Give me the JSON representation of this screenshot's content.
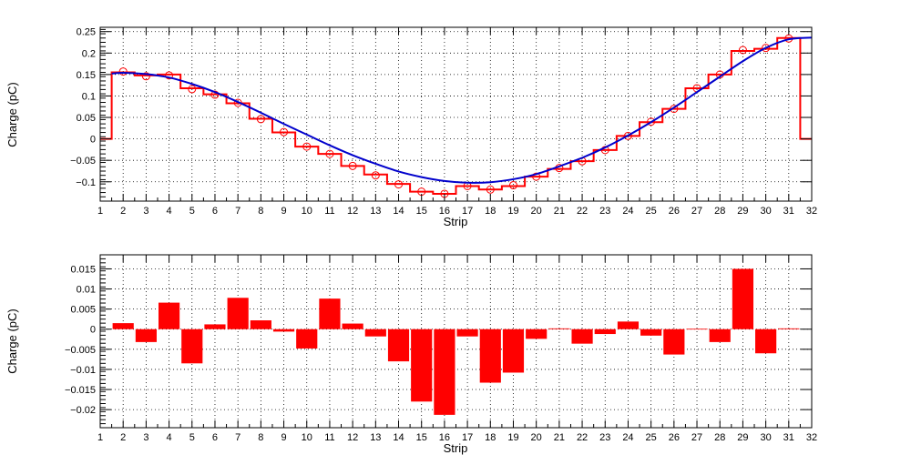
{
  "colors": {
    "hist": "#ff0000",
    "fit": "#0000cc",
    "bar": "#ff0000"
  },
  "chart_data": [
    {
      "type": "line",
      "xlabel": "Strip",
      "ylabel": "Charge (pC)",
      "xlim": [
        1,
        32
      ],
      "ylim": [
        -0.145,
        0.26
      ],
      "xticks": [
        1,
        2,
        3,
        4,
        5,
        6,
        7,
        8,
        9,
        10,
        11,
        12,
        13,
        14,
        15,
        16,
        17,
        18,
        19,
        20,
        21,
        22,
        23,
        24,
        25,
        26,
        27,
        28,
        29,
        30,
        31,
        32
      ],
      "yticks": [
        -0.1,
        -0.05,
        0,
        0.05,
        0.1,
        0.15,
        0.2,
        0.25
      ],
      "ytick_labels": [
        "−0.1",
        "−0.05",
        "0",
        "0.05",
        "0.1",
        "0.15",
        "0.2",
        "0.25"
      ],
      "grid": true,
      "series": [
        {
          "kind": "histogram",
          "bin_edges": [
            0.5,
            1.5,
            2.5,
            3.5,
            4.5,
            5.5,
            6.5,
            7.5,
            8.5,
            9.5,
            10.5,
            11.5,
            12.5,
            13.5,
            14.5,
            15.5,
            16.5,
            17.5,
            18.5,
            19.5,
            20.5,
            21.5,
            22.5,
            23.5,
            24.5,
            25.5,
            26.5,
            27.5,
            28.5,
            29.5,
            30.5,
            31.5,
            32.5
          ],
          "values": [
            0,
            0.155,
            0.148,
            0.15,
            0.118,
            0.104,
            0.083,
            0.047,
            0.015,
            -0.018,
            -0.035,
            -0.063,
            -0.083,
            -0.105,
            -0.123,
            -0.128,
            -0.11,
            -0.118,
            -0.11,
            -0.088,
            -0.07,
            -0.052,
            -0.026,
            0.007,
            0.039,
            0.07,
            0.118,
            0.15,
            0.205,
            0.21,
            0.235,
            0
          ],
          "markers_x": [
            2,
            3,
            4,
            5,
            6,
            7,
            8,
            9,
            10,
            11,
            12,
            13,
            14,
            15,
            16,
            17,
            18,
            19,
            20,
            21,
            22,
            23,
            24,
            25,
            26,
            27,
            28,
            29,
            30,
            31
          ],
          "markers_y": [
            0.157,
            0.146,
            0.148,
            0.116,
            0.103,
            0.084,
            0.046,
            0.016,
            -0.018,
            -0.035,
            -0.063,
            -0.085,
            -0.106,
            -0.123,
            -0.128,
            -0.11,
            -0.118,
            -0.108,
            -0.088,
            -0.068,
            -0.052,
            -0.026,
            0.007,
            0.04,
            0.07,
            0.118,
            0.15,
            0.207,
            0.212,
            0.234
          ]
        },
        {
          "kind": "fit",
          "x": [
            1.5,
            2,
            3,
            4,
            5,
            6,
            7,
            8,
            9,
            10,
            11,
            12,
            13,
            14,
            15,
            16,
            17,
            18,
            19,
            20,
            21,
            22,
            23,
            24,
            25,
            26,
            27,
            28,
            29,
            30,
            31,
            32
          ],
          "values": [
            0.152,
            0.154,
            0.151,
            0.143,
            0.128,
            0.109,
            0.086,
            0.061,
            0.035,
            0.01,
            -0.015,
            -0.038,
            -0.058,
            -0.076,
            -0.089,
            -0.098,
            -0.102,
            -0.101,
            -0.094,
            -0.082,
            -0.064,
            -0.044,
            -0.02,
            0.008,
            0.039,
            0.073,
            0.109,
            0.145,
            0.181,
            0.212,
            0.232,
            0.236
          ]
        }
      ]
    },
    {
      "type": "bar",
      "xlabel": "Strip",
      "ylabel": "Charge (pC)",
      "xlim": [
        1,
        32
      ],
      "ylim": [
        -0.0245,
        0.0185
      ],
      "xticks": [
        1,
        2,
        3,
        4,
        5,
        6,
        7,
        8,
        9,
        10,
        11,
        12,
        13,
        14,
        15,
        16,
        17,
        18,
        19,
        20,
        21,
        22,
        23,
        24,
        25,
        26,
        27,
        28,
        29,
        30,
        31,
        32
      ],
      "yticks": [
        -0.02,
        -0.015,
        -0.01,
        -0.005,
        0,
        0.005,
        0.01,
        0.015
      ],
      "ytick_labels": [
        "−0.02",
        "−0.015",
        "−0.01",
        "−0.005",
        "0",
        "0.005",
        "0.01",
        "0.015"
      ],
      "grid": true,
      "bar_x": [
        2,
        3,
        4,
        5,
        6,
        7,
        8,
        9,
        10,
        11,
        12,
        13,
        14,
        15,
        16,
        17,
        18,
        19,
        20,
        21,
        22,
        23,
        24,
        25,
        26,
        27,
        28,
        29,
        30,
        31
      ],
      "values": [
        0.0015,
        -0.0032,
        0.0066,
        -0.0085,
        0.0012,
        0.0078,
        0.0022,
        -0.0006,
        -0.0048,
        0.0076,
        0.0014,
        -0.0018,
        -0.008,
        -0.018,
        -0.0213,
        -0.0018,
        -0.0133,
        -0.0108,
        -0.0024,
        0.0002,
        -0.0036,
        -0.0012,
        0.0019,
        -0.0016,
        -0.0063,
        0.0001,
        -0.0032,
        0.015,
        -0.006,
        0.0002
      ]
    }
  ]
}
